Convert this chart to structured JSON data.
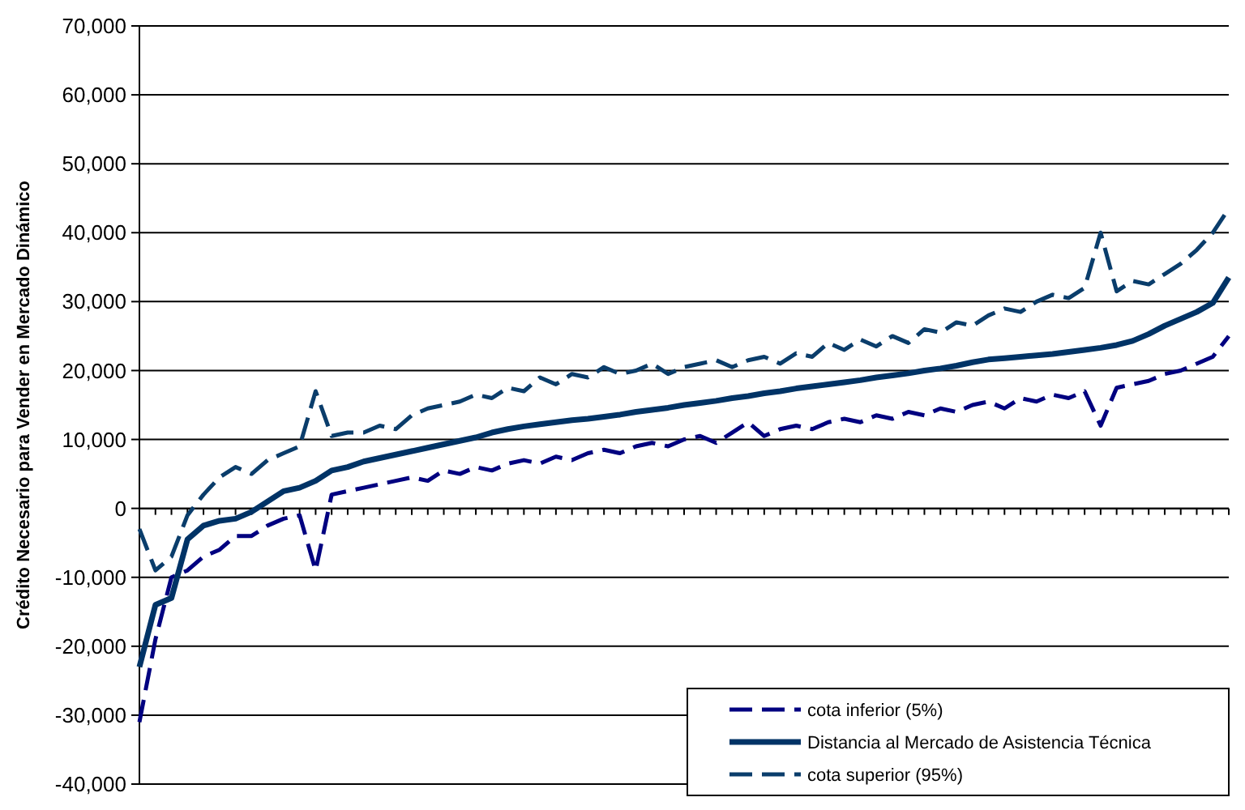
{
  "chart_data": {
    "type": "line",
    "ylabel": "Crédito Necesario para Vender en Mercado Dinámico",
    "categories": [
      null,
      null,
      null,
      null,
      null,
      null,
      null,
      null,
      null,
      null,
      null,
      null,
      null,
      null,
      null,
      null,
      null,
      null,
      null,
      null,
      null,
      null,
      null,
      null,
      null,
      null,
      null,
      null,
      null,
      null,
      null,
      null,
      null,
      null,
      null,
      null,
      null,
      null,
      null,
      null,
      null,
      null,
      null,
      null,
      null,
      null,
      null,
      null,
      null,
      null,
      null,
      null,
      null,
      null,
      null,
      null,
      null,
      null,
      null,
      null,
      null,
      null,
      null,
      null,
      null,
      null,
      null,
      null,
      null
    ],
    "ylim": [
      -40000,
      70000
    ],
    "yticks": [
      {
        "value": -40000,
        "label": "-40,000"
      },
      {
        "value": -30000,
        "label": "-30,000"
      },
      {
        "value": -20000,
        "label": "-20,000"
      },
      {
        "value": -10000,
        "label": "-10,000"
      },
      0,
      {
        "value": 10000,
        "label": "10,000"
      },
      {
        "value": 20000,
        "label": "20,000"
      },
      {
        "value": 30000,
        "label": "30,000"
      },
      {
        "value": 40000,
        "label": "40,000"
      },
      {
        "value": 50000,
        "label": "50,000"
      },
      {
        "value": 60000,
        "label": "60,000"
      },
      {
        "value": 70000,
        "label": "70,000"
      }
    ],
    "grid": "y",
    "legend": "bottom right",
    "series": [
      {
        "name": "cota inferior (5%)",
        "color": "#000080",
        "line_style": "dashed",
        "values": [
          -31000,
          -19000,
          -10000,
          -9000,
          -7000,
          -6000,
          -4000,
          -4000,
          -2500,
          -1500,
          -1000,
          -9000,
          2000,
          2500,
          3000,
          3500,
          4000,
          4500,
          4000,
          5500,
          5000,
          6000,
          5500,
          6500,
          7000,
          6500,
          7500,
          7000,
          8000,
          8500,
          8000,
          9000,
          9500,
          9000,
          10000,
          10500,
          9500,
          11000,
          12500,
          10500,
          11500,
          12000,
          11500,
          12500,
          13000,
          12500,
          13500,
          13000,
          14000,
          13500,
          14500,
          14000,
          15000,
          15500,
          14500,
          16000,
          15500,
          16500,
          16000,
          17000,
          12000,
          17500,
          18000,
          18500,
          19500,
          20000,
          21000,
          22000,
          25000
        ]
      },
      {
        "name": "Distancia al Mercado de Asistencia Técnica",
        "color": "#003366",
        "line_style": "solid",
        "values": [
          -23000,
          -14000,
          -13000,
          -4500,
          -2500,
          -1800,
          -1500,
          -500,
          1000,
          2500,
          3000,
          4000,
          5500,
          6000,
          6800,
          7300,
          7800,
          8300,
          8800,
          9300,
          9800,
          10300,
          11000,
          11500,
          11900,
          12200,
          12500,
          12800,
          13000,
          13300,
          13600,
          14000,
          14300,
          14600,
          15000,
          15300,
          15600,
          16000,
          16300,
          16700,
          17000,
          17400,
          17700,
          18000,
          18300,
          18600,
          19000,
          19300,
          19600,
          20000,
          20300,
          20700,
          21200,
          21600,
          21800,
          22000,
          22200,
          22400,
          22700,
          23000,
          23300,
          23700,
          24300,
          25300,
          26500,
          27500,
          28500,
          29800,
          33500
        ]
      },
      {
        "name": "cota superior (95%)",
        "color": "#0a3d6b",
        "line_style": "dashed",
        "values": [
          -3000,
          -9000,
          -7000,
          -1000,
          2000,
          4500,
          6000,
          5000,
          7000,
          8000,
          9000,
          17000,
          10500,
          11000,
          11000,
          12000,
          11500,
          13500,
          14500,
          15000,
          15500,
          16500,
          16000,
          17500,
          17000,
          19000,
          18000,
          19500,
          19000,
          20500,
          19500,
          20000,
          21000,
          19500,
          20500,
          21000,
          21500,
          20500,
          21500,
          22000,
          21000,
          22500,
          22000,
          24000,
          23000,
          24500,
          23500,
          25000,
          24000,
          26000,
          25500,
          27000,
          26500,
          28000,
          29000,
          28500,
          30000,
          31000,
          30500,
          32000,
          40000,
          31500,
          33000,
          32500,
          34000,
          35500,
          37500,
          40000,
          43500
        ]
      }
    ]
  }
}
